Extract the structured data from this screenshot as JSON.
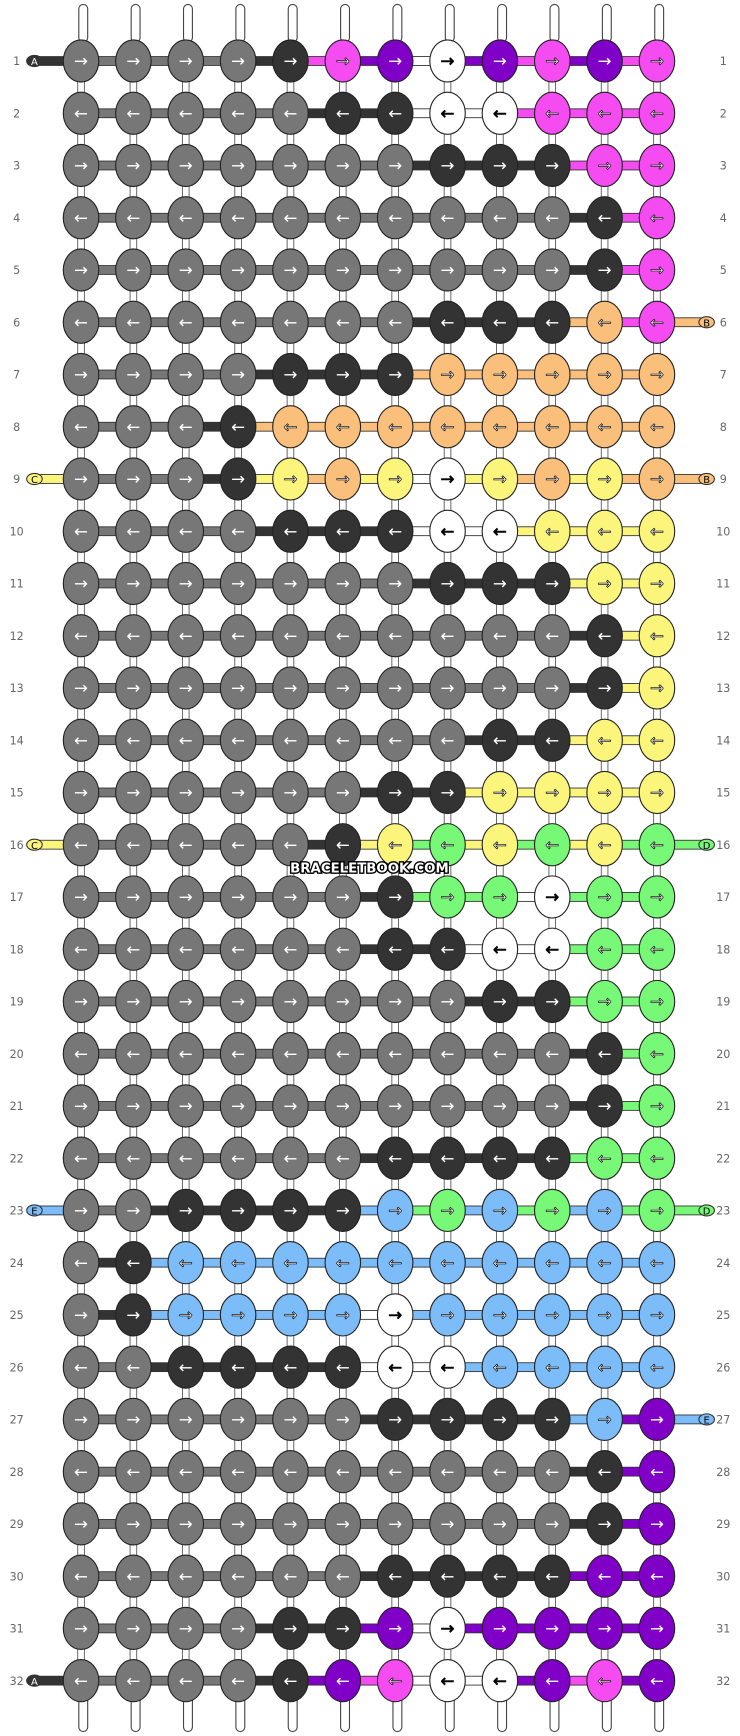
{
  "watermark": "BRACELETBOOK.COM",
  "palette": {
    "G": "#777777",
    "D": "#333333",
    "W": "#ffffff",
    "P": "#f54cf2",
    "V": "#8000c8",
    "O": "#fbbf7c",
    "Y": "#fbf57c",
    "L": "#77f877",
    "B": "#7cbcf8"
  },
  "rows": [
    {
      "number": 1,
      "colors": "GGGGDPVWVPVP",
      "arrows": [
        "→",
        "→",
        "→",
        "→",
        "→",
        "→",
        "→",
        "→",
        "→",
        "→",
        "→",
        "→"
      ]
    },
    {
      "number": 2,
      "colors": "GGGGGDDWWPPP",
      "arrows": [
        "←",
        "←",
        "←",
        "←",
        "←",
        "←",
        "←",
        "←",
        "←",
        "←",
        "←",
        "←"
      ]
    },
    {
      "number": 3,
      "colors": "GGGGGGGDDDPP",
      "arrows": [
        "→",
        "→",
        "→",
        "→",
        "→",
        "→",
        "→",
        "→",
        "→",
        "→",
        "→",
        "→"
      ]
    },
    {
      "number": 4,
      "colors": "GGGGGGGGGGDP",
      "arrows": [
        "←",
        "←",
        "←",
        "←",
        "←",
        "←",
        "←",
        "←",
        "←",
        "←",
        "←",
        "←"
      ]
    },
    {
      "number": 5,
      "colors": "GGGGGGGGGGDP",
      "arrows": [
        "→",
        "→",
        "→",
        "→",
        "→",
        "→",
        "→",
        "→",
        "→",
        "→",
        "→",
        "→"
      ]
    },
    {
      "number": 6,
      "colors": "GGGGGGGDDDOP",
      "arrows": [
        "←",
        "←",
        "←",
        "←",
        "←",
        "←",
        "←",
        "←",
        "←",
        "←",
        "←",
        "←"
      ]
    },
    {
      "number": 7,
      "colors": "GGGGDDDOOOOO",
      "arrows": [
        "→",
        "→",
        "→",
        "→",
        "→",
        "→",
        "→",
        "→",
        "→",
        "→",
        "→",
        "→"
      ]
    },
    {
      "number": 8,
      "colors": "GGGDOOOOOOOO",
      "arrows": [
        "←",
        "←",
        "←",
        "←",
        "←",
        "←",
        "←",
        "←",
        "←",
        "←",
        "←",
        "←"
      ]
    },
    {
      "number": 9,
      "colors": "GGGDYOYWYOYO",
      "arrows": [
        "→",
        "→",
        "→",
        "→",
        "→",
        "→",
        "→",
        "→",
        "→",
        "→",
        "→",
        "→"
      ]
    },
    {
      "number": 10,
      "colors": "GGGGDDDWWYYY",
      "arrows": [
        "←",
        "←",
        "←",
        "←",
        "←",
        "←",
        "←",
        "←",
        "←",
        "←",
        "←",
        "←"
      ]
    },
    {
      "number": 11,
      "colors": "GGGGGGGDDDYY",
      "arrows": [
        "→",
        "→",
        "→",
        "→",
        "→",
        "→",
        "→",
        "→",
        "→",
        "→",
        "→",
        "→"
      ]
    },
    {
      "number": 12,
      "colors": "GGGGGGGGGGDY",
      "arrows": [
        "←",
        "←",
        "←",
        "←",
        "←",
        "←",
        "←",
        "←",
        "←",
        "←",
        "←",
        "←"
      ]
    },
    {
      "number": 13,
      "colors": "GGGGGGGGGGDY",
      "arrows": [
        "→",
        "→",
        "→",
        "→",
        "→",
        "→",
        "→",
        "→",
        "→",
        "→",
        "→",
        "→"
      ]
    },
    {
      "number": 14,
      "colors": "GGGGGGGGDDYY",
      "arrows": [
        "←",
        "←",
        "←",
        "←",
        "←",
        "←",
        "←",
        "←",
        "←",
        "←",
        "←",
        "←"
      ]
    },
    {
      "number": 15,
      "colors": "GGGGGGDDYYYY",
      "arrows": [
        "→",
        "→",
        "→",
        "→",
        "→",
        "→",
        "→",
        "→",
        "→",
        "→",
        "→",
        "→"
      ]
    },
    {
      "number": 16,
      "colors": "GGGGGDYLYLYL",
      "arrows": [
        "←",
        "←",
        "←",
        "←",
        "←",
        "←",
        "←",
        "←",
        "←",
        "←",
        "←",
        "←"
      ]
    },
    {
      "number": 17,
      "colors": "GGGGGGDLLWLL",
      "arrows": [
        "→",
        "→",
        "→",
        "→",
        "→",
        "→",
        "→",
        "→",
        "→",
        "→",
        "→",
        "→"
      ]
    },
    {
      "number": 18,
      "colors": "GGGGGGDDWWLL",
      "arrows": [
        "←",
        "←",
        "←",
        "←",
        "←",
        "←",
        "←",
        "←",
        "←",
        "←",
        "←",
        "←"
      ]
    },
    {
      "number": 19,
      "colors": "GGGGGGGGDDLL",
      "arrows": [
        "→",
        "→",
        "→",
        "→",
        "→",
        "→",
        "→",
        "→",
        "→",
        "→",
        "→",
        "→"
      ]
    },
    {
      "number": 20,
      "colors": "GGGGGGGGGGDL",
      "arrows": [
        "←",
        "←",
        "←",
        "←",
        "←",
        "←",
        "←",
        "←",
        "←",
        "←",
        "←",
        "←"
      ]
    },
    {
      "number": 21,
      "colors": "GGGGGGGGGGDL",
      "arrows": [
        "→",
        "→",
        "→",
        "→",
        "→",
        "→",
        "→",
        "→",
        "→",
        "→",
        "→",
        "→"
      ]
    },
    {
      "number": 22,
      "colors": "GGGGGGDDDDLL",
      "arrows": [
        "←",
        "←",
        "←",
        "←",
        "←",
        "←",
        "←",
        "←",
        "←",
        "←",
        "←",
        "←"
      ]
    },
    {
      "number": 23,
      "colors": "GGDDDDBLBLBL",
      "arrows": [
        "→",
        "→",
        "→",
        "→",
        "→",
        "→",
        "→",
        "→",
        "→",
        "→",
        "→",
        "→"
      ]
    },
    {
      "number": 24,
      "colors": "GDBBBBBBBBBB",
      "arrows": [
        "←",
        "←",
        "←",
        "←",
        "←",
        "←",
        "←",
        "←",
        "←",
        "←",
        "←",
        "←"
      ]
    },
    {
      "number": 25,
      "colors": "GDBBBBWBBBBB",
      "arrows": [
        "→",
        "→",
        "→",
        "→",
        "→",
        "→",
        "→",
        "→",
        "→",
        "→",
        "→",
        "→"
      ]
    },
    {
      "number": 26,
      "colors": "GGDDDDWWBBBB",
      "arrows": [
        "←",
        "←",
        "←",
        "←",
        "←",
        "←",
        "←",
        "←",
        "←",
        "←",
        "←",
        "←"
      ]
    },
    {
      "number": 27,
      "colors": "GGGGGGDDDDBV",
      "arrows": [
        "→",
        "→",
        "→",
        "→",
        "→",
        "→",
        "→",
        "→",
        "→",
        "→",
        "→",
        "→"
      ]
    },
    {
      "number": 28,
      "colors": "GGGGGGGGGGDV",
      "arrows": [
        "←",
        "←",
        "←",
        "←",
        "←",
        "←",
        "←",
        "←",
        "←",
        "←",
        "←",
        "←"
      ]
    },
    {
      "number": 29,
      "colors": "GGGGGGGGGGDV",
      "arrows": [
        "→",
        "→",
        "→",
        "→",
        "→",
        "→",
        "→",
        "→",
        "→",
        "→",
        "→",
        "→"
      ]
    },
    {
      "number": 30,
      "colors": "GGGGGGDDDDVV",
      "arrows": [
        "←",
        "←",
        "←",
        "←",
        "←",
        "←",
        "←",
        "←",
        "←",
        "←",
        "←",
        "←"
      ]
    },
    {
      "number": 31,
      "colors": "GGGGDDVWVVVV",
      "arrows": [
        "→",
        "→",
        "→",
        "→",
        "→",
        "→",
        "→",
        "→",
        "→",
        "→",
        "→",
        "→"
      ]
    },
    {
      "number": 32,
      "colors": "GGGGDVPWWVPV",
      "arrows": [
        "←",
        "←",
        "←",
        "←",
        "←",
        "←",
        "←",
        "←",
        "←",
        "←",
        "←",
        "←"
      ]
    }
  ],
  "threads": [
    {
      "row": 1,
      "side": "left",
      "label": "A",
      "color": "D"
    },
    {
      "row": 32,
      "side": "left",
      "label": "A",
      "color": "D"
    },
    {
      "row": 6,
      "side": "right",
      "label": "B",
      "color": "O"
    },
    {
      "row": 9,
      "side": "left",
      "label": "C",
      "color": "Y"
    },
    {
      "row": 9,
      "side": "right",
      "label": "B",
      "color": "O"
    },
    {
      "row": 16,
      "side": "left",
      "label": "C",
      "color": "Y"
    },
    {
      "row": 16,
      "side": "right",
      "label": "D",
      "color": "L"
    },
    {
      "row": 23,
      "side": "left",
      "label": "E",
      "color": "B"
    },
    {
      "row": 23,
      "side": "right",
      "label": "D",
      "color": "L"
    },
    {
      "row": 27,
      "side": "right",
      "label": "E",
      "color": "B"
    }
  ]
}
